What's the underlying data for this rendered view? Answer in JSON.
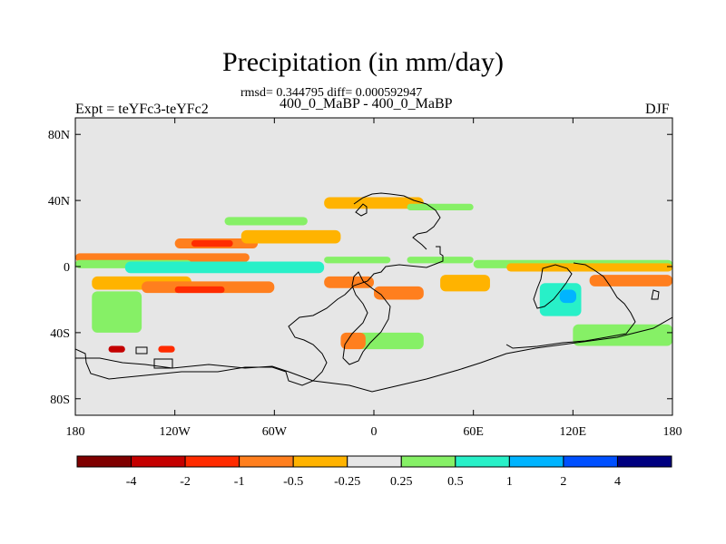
{
  "chart_data": {
    "type": "heatmap",
    "title": "Precipitation (in mm/day)",
    "subtitle_stats": "rmsd= 0.344795 diff= 0.000592947",
    "subtitle_periods": "400_0_MaBP - 400_0_MaBP",
    "label_left": "Expt = teYFc3-teYFc2",
    "label_right": "DJF",
    "xlim": [
      -180,
      180
    ],
    "ylim": [
      -90,
      90
    ],
    "x_ticks": [
      {
        "value": -180,
        "label": "180"
      },
      {
        "value": -120,
        "label": "120W"
      },
      {
        "value": -60,
        "label": "60W"
      },
      {
        "value": 0,
        "label": "0"
      },
      {
        "value": 60,
        "label": "60E"
      },
      {
        "value": 120,
        "label": "120E"
      },
      {
        "value": 180,
        "label": "180"
      }
    ],
    "y_ticks": [
      {
        "value": 80,
        "label": "80N"
      },
      {
        "value": 40,
        "label": "40N"
      },
      {
        "value": 0,
        "label": "0"
      },
      {
        "value": -40,
        "label": "40S"
      },
      {
        "value": -80,
        "label": "80S"
      }
    ],
    "colorbar": {
      "labels": [
        "-4",
        "-2",
        "-1",
        "-0.5",
        "-0.25",
        "0.25",
        "0.5",
        "1",
        "2",
        "4"
      ],
      "colors": [
        "#7f0000",
        "#c40000",
        "#ff2b00",
        "#ff7f1e",
        "#ffb300",
        "#e6e6e6",
        "#86f066",
        "#28f0c8",
        "#00b4ff",
        "#0050ff",
        "#000080"
      ]
    },
    "background_color": "#e6e6e6",
    "anomaly_regions": [
      {
        "lon": [
          -180,
          -75
        ],
        "lat": [
          8,
          3
        ],
        "value": -0.75
      },
      {
        "lon": [
          -120,
          -70
        ],
        "lat": [
          17,
          11
        ],
        "value": -0.75
      },
      {
        "lon": [
          -110,
          -85
        ],
        "lat": [
          16,
          12
        ],
        "value": -1.5
      },
      {
        "lon": [
          -80,
          -20
        ],
        "lat": [
          22,
          14
        ],
        "value": -0.4
      },
      {
        "lon": [
          -180,
          -110
        ],
        "lat": [
          4,
          -1
        ],
        "value": 0.4
      },
      {
        "lon": [
          -150,
          -30
        ],
        "lat": [
          3,
          -4
        ],
        "value": 0.75
      },
      {
        "lon": [
          -30,
          10
        ],
        "lat": [
          6,
          2
        ],
        "value": 0.4
      },
      {
        "lon": [
          20,
          60
        ],
        "lat": [
          6,
          2
        ],
        "value": 0.4
      },
      {
        "lon": [
          -170,
          -110
        ],
        "lat": [
          -6,
          -14
        ],
        "value": -0.4
      },
      {
        "lon": [
          -140,
          -60
        ],
        "lat": [
          -9,
          -16
        ],
        "value": -0.75
      },
      {
        "lon": [
          -120,
          -90
        ],
        "lat": [
          -12,
          -16
        ],
        "value": -1.5
      },
      {
        "lon": [
          -30,
          0
        ],
        "lat": [
          -6,
          -13
        ],
        "value": -0.75
      },
      {
        "lon": [
          0,
          30
        ],
        "lat": [
          -12,
          -20
        ],
        "value": -0.75
      },
      {
        "lon": [
          60,
          180
        ],
        "lat": [
          4,
          -1
        ],
        "value": 0.4
      },
      {
        "lon": [
          80,
          180
        ],
        "lat": [
          2,
          -3
        ],
        "value": -0.4
      },
      {
        "lon": [
          130,
          180
        ],
        "lat": [
          -5,
          -12
        ],
        "value": -0.75
      },
      {
        "lon": [
          -30,
          30
        ],
        "lat": [
          42,
          35
        ],
        "value": -0.4
      },
      {
        "lon": [
          20,
          60
        ],
        "lat": [
          38,
          34
        ],
        "value": 0.4
      },
      {
        "lon": [
          -90,
          -40
        ],
        "lat": [
          30,
          25
        ],
        "value": 0.4
      },
      {
        "lon": [
          100,
          125
        ],
        "lat": [
          -10,
          -30
        ],
        "value": 0.75
      },
      {
        "lon": [
          112,
          122
        ],
        "lat": [
          -14,
          -22
        ],
        "value": 1.5
      },
      {
        "lon": [
          40,
          70
        ],
        "lat": [
          -5,
          -15
        ],
        "value": -0.4
      },
      {
        "lon": [
          -10,
          30
        ],
        "lat": [
          -40,
          -50
        ],
        "value": 0.4
      },
      {
        "lon": [
          -20,
          -5
        ],
        "lat": [
          -40,
          -50
        ],
        "value": -0.75
      },
      {
        "lon": [
          120,
          180
        ],
        "lat": [
          -35,
          -48
        ],
        "value": 0.4
      },
      {
        "lon": [
          -160,
          -150
        ],
        "lat": [
          -48,
          -52
        ],
        "value": -3
      },
      {
        "lon": [
          -130,
          -120
        ],
        "lat": [
          -48,
          -52
        ],
        "value": -1.5
      },
      {
        "lon": [
          -170,
          -140
        ],
        "lat": [
          -15,
          -40
        ],
        "value": 0.4
      }
    ]
  }
}
